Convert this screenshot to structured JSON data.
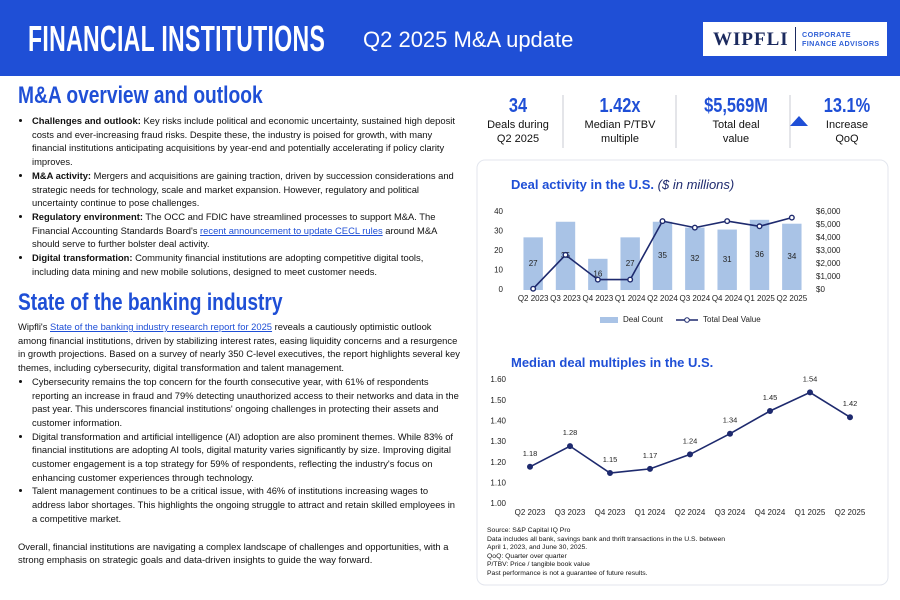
{
  "header": {
    "title": "FINANCIAL INSTITUTIONS",
    "subtitle": "Q2 2025 M&A update",
    "logo": "WIPFLI",
    "logo_sub": "CORPORATE FINANCE ADVISORS"
  },
  "overview": {
    "heading": "M&A overview and outlook",
    "bullets": [
      {
        "label": "Challenges and outlook:",
        "text": "Key risks include political and economic uncertainty, sustained high deposit costs and ever-increasing fraud risks. Despite these, the industry is poised for growth, with many financial institutions anticipating acquisitions by year-end and potentially accelerating if policy clarity improves."
      },
      {
        "label": "M&A activity:",
        "text": "Mergers and acquisitions are gaining traction, driven by succession considerations and strategic needs for technology, scale and market expansion. However, regulatory and political uncertainty continue to pose challenges."
      },
      {
        "label": "Regulatory environment:",
        "text": "The OCC and FDIC have streamlined processes to support M&A. The Financial Accounting Standards Board's",
        "link": "recent announcement to update CECL rules",
        "text_after": "around M&A should serve to further bolster deal activity."
      },
      {
        "label": "Digital transformation:",
        "text": "Community financial institutions are adopting competitive digital tools, including data mining and new mobile solutions, designed to meet customer needs."
      }
    ]
  },
  "banking": {
    "heading": "State of the banking industry",
    "intro_before": "Wipfli's",
    "intro_link": "State of the banking industry research report for 2025",
    "intro_after": "reveals a cautiously optimistic outlook among financial institutions, driven by stabilizing interest rates, easing liquidity concerns and a resurgence in growth projections. Based on a survey of nearly 350 C-level executives, the report highlights several key themes, including cybersecurity, digital transformation and talent management.",
    "bullets": [
      "Cybersecurity remains the top concern for the fourth consecutive year, with 61% of respondents reporting an increase in fraud and 79% detecting unauthorized access to their networks and data in the past year. This underscores financial institutions' ongoing challenges in protecting their assets and customer information.",
      "Digital transformation and artificial intelligence (AI) adoption are also prominent themes. While 83% of financial institutions are adopting AI tools, digital maturity varies significantly by size. Improving digital customer engagement is a top strategy for 59% of respondents, reflecting the industry's focus on enhancing customer experiences through technology.",
      "Talent management continues to be a critical issue, with 46% of institutions increasing wages to address labor shortages. This highlights the ongoing struggle to attract and retain skilled employees in a competitive market."
    ],
    "closing": "Overall, financial institutions are navigating a complex landscape of challenges and opportunities, with a strong emphasis on strategic goals and data-driven insights to guide the way forward."
  },
  "stats": [
    {
      "value": "34",
      "label": "Deals during Q2 2025"
    },
    {
      "value": "1.42x",
      "label": "Median P/TBV multiple"
    },
    {
      "value": "$5,569M",
      "label": "Total deal value"
    },
    {
      "value": "13.1%",
      "label": "Increase QoQ"
    }
  ],
  "chart_data": [
    {
      "type": "combo",
      "title": "Deal activity in the U.S.",
      "title_note": "($ in millions)",
      "categories": [
        "Q2 2023",
        "Q3 2023",
        "Q4 2023",
        "Q1 2024",
        "Q2 2024",
        "Q3 2024",
        "Q4 2024",
        "Q1 2025",
        "Q2 2025"
      ],
      "series": [
        {
          "name": "Deal Count",
          "type": "bar",
          "color": "#a9c3e6",
          "values": [
            27,
            35,
            16,
            27,
            35,
            32,
            31,
            36,
            34
          ]
        },
        {
          "name": "Total Deal Value",
          "type": "line",
          "axis": "y2",
          "color": "#1e2a6e",
          "values": [
            100,
            2700,
            800,
            800,
            5300,
            4800,
            5300,
            4900,
            5569
          ]
        }
      ],
      "ylim": [
        0,
        40
      ],
      "yticks": [
        0,
        10,
        20,
        30,
        40
      ],
      "y2lim": [
        0,
        6000
      ],
      "y2ticks": [
        {
          "value": 0,
          "label": "$0"
        },
        {
          "value": 1000,
          "label": "$1,000"
        },
        {
          "value": 2000,
          "label": "$2,000"
        },
        {
          "value": 3000,
          "label": "$3,000"
        },
        {
          "value": 4000,
          "label": "$4,000"
        },
        {
          "value": 5000,
          "label": "$5,000"
        },
        {
          "value": 6000,
          "label": "$6,000"
        }
      ]
    },
    {
      "type": "line",
      "title": "Median deal multiples in the U.S.",
      "categories": [
        "Q2 2023",
        "Q3 2023",
        "Q4 2023",
        "Q1 2024",
        "Q2 2024",
        "Q3 2024",
        "Q4 2024",
        "Q1 2025",
        "Q2 2025"
      ],
      "values": [
        1.18,
        1.28,
        1.15,
        1.17,
        1.24,
        1.34,
        1.45,
        1.54,
        1.42
      ],
      "color": "#1e2a6e",
      "ylim": [
        1.0,
        1.6
      ],
      "yticks": [
        {
          "value": 1.0,
          "label": "1.00"
        },
        {
          "value": 1.1,
          "label": "1.10"
        },
        {
          "value": 1.2,
          "label": "1.20"
        },
        {
          "value": 1.3,
          "label": "1.30"
        },
        {
          "value": 1.4,
          "label": "1.40"
        },
        {
          "value": 1.5,
          "label": "1.50"
        },
        {
          "value": 1.6,
          "label": "1.60"
        }
      ]
    }
  ],
  "footnotes": [
    "Source: S&P Capital IQ Pro",
    "Data includes all bank, savings bank and thrift transactions in the U.S. between April 1, 2023, and June 30, 2025.",
    "QoQ: Quarter over quarter",
    "P/TBV: Price / tangible book value",
    "Past performance is not a guarantee of future results."
  ]
}
